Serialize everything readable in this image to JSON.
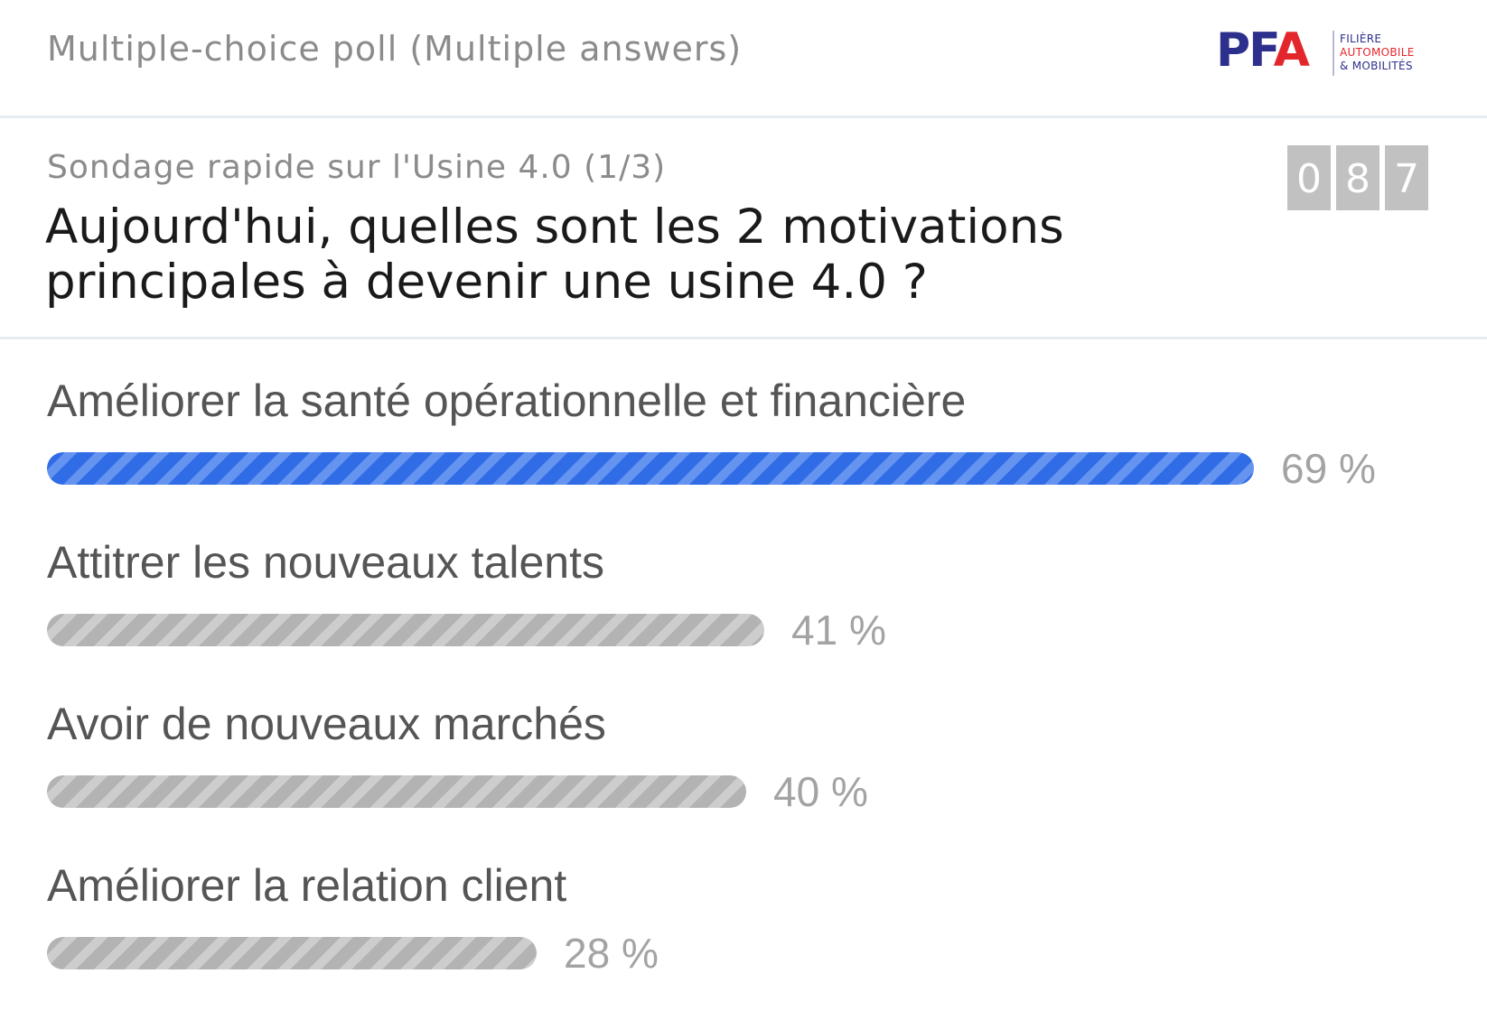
{
  "header": {
    "poll_type": "Multiple-choice poll (Multiple answers)",
    "logo": {
      "letters_p_f": "PF",
      "letter_a": "A",
      "line1": "FILIÈRE",
      "line2": "AUTOMOBILE",
      "line3": "& MOBILITÉS",
      "colors": {
        "primary": "#2c2f8c",
        "accent": "#e3262b"
      }
    }
  },
  "question": {
    "subtitle": "Sondage rapide sur l'Usine 4.0 (1/3)",
    "title": "Aujourd'hui, quelles sont les 2 motivations principales à devenir une usine 4.0 ?",
    "response_counter": [
      "0",
      "8",
      "7"
    ]
  },
  "options": [
    {
      "label": "Améliorer la santé opérationnelle et financière",
      "percent": 69,
      "percent_label": "69 %",
      "highlighted": true
    },
    {
      "label": "Attitrer les nouveaux talents",
      "percent": 41,
      "percent_label": "41 %",
      "highlighted": false
    },
    {
      "label": "Avoir de nouveaux marchés",
      "percent": 40,
      "percent_label": "40 %",
      "highlighted": false
    },
    {
      "label": "Améliorer la relation client",
      "percent": 28,
      "percent_label": "28 %",
      "highlighted": false
    }
  ],
  "colors": {
    "winner_bar": "#3f7bea",
    "normal_bar": "#b9b9b9",
    "percent_text": "#a3a3a3"
  }
}
